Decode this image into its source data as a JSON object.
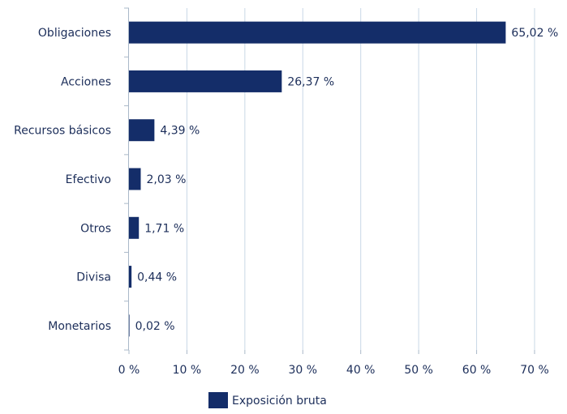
{
  "chart_data": {
    "type": "bar",
    "orientation": "horizontal",
    "categories": [
      "Obligaciones",
      "Acciones",
      "Recursos básicos",
      "Efectivo",
      "Otros",
      "Divisa",
      "Monetarios"
    ],
    "series": [
      {
        "name": "Exposición bruta",
        "values": [
          65.02,
          26.37,
          4.39,
          2.03,
          1.71,
          0.44,
          0.02
        ],
        "data_labels": [
          "65,02 %",
          "26,37 %",
          "4,39 %",
          "2,03 %",
          "1,71 %",
          "0,44 %",
          "0,02 %"
        ],
        "color": "#142d69"
      }
    ],
    "xlim": [
      0,
      70
    ],
    "x_ticks": [
      0,
      10,
      20,
      30,
      40,
      50,
      60,
      70
    ],
    "x_tick_labels": [
      "0 %",
      "10 %",
      "20 %",
      "30 %",
      "40 %",
      "50 %",
      "60 %",
      "70 %"
    ],
    "grid": "vertical",
    "grid_color": "#c9d8e6",
    "axis_color": "#aab8c8",
    "legend": "bottom-center",
    "title": "",
    "xlabel": "",
    "ylabel": ""
  }
}
